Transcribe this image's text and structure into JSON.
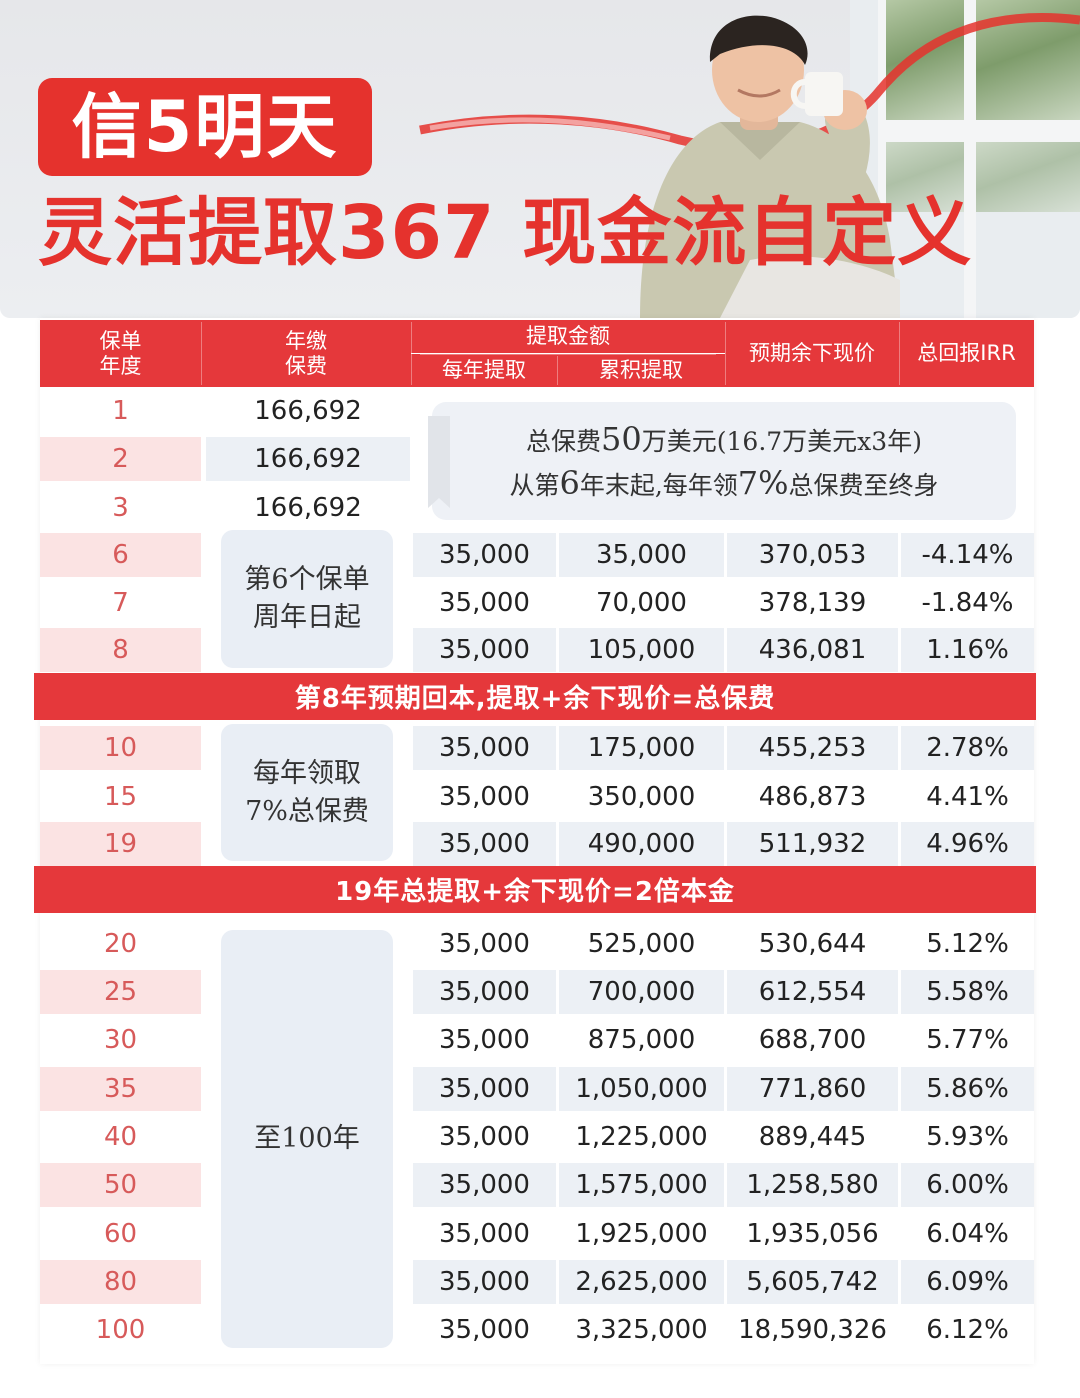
{
  "hero": {
    "badge": "信5明天",
    "headline": "灵活提取367 现金流自定义"
  },
  "table": {
    "headers": {
      "year": "保单\n年度",
      "premium": "年缴\n保费",
      "withdraw_group": "提取金额",
      "annual": "每年提取",
      "cumulative": "累积提取",
      "cash_value": "预期余下现价",
      "irr": "总回报IRR"
    },
    "note": {
      "line1_a": "总保费",
      "line1_b": "50",
      "line1_c": "万美元(16.7万美元x3年)",
      "line2_a": "从第",
      "line2_b": "6",
      "line2_c": "年末起,每年领",
      "line2_d": "7%",
      "line2_e": "总保费至终身"
    },
    "premium_rows": [
      {
        "year": "1",
        "premium": "166,692"
      },
      {
        "year": "2",
        "premium": "166,692"
      },
      {
        "year": "3",
        "premium": "166,692"
      }
    ],
    "section1": {
      "label_1": "第6个保单",
      "label_2": "周年日起",
      "rows": [
        {
          "year": "6",
          "annual": "35,000",
          "cumulative": "35,000",
          "cash_value": "370,053",
          "irr": "-4.14%"
        },
        {
          "year": "7",
          "annual": "35,000",
          "cumulative": "70,000",
          "cash_value": "378,139",
          "irr": "-1.84%"
        },
        {
          "year": "8",
          "annual": "35,000",
          "cumulative": "105,000",
          "cash_value": "436,081",
          "irr": "1.16%"
        }
      ]
    },
    "banner1": "第8年预期回本,提取+余下现价=总保费",
    "section2": {
      "label_1": "每年领取",
      "label_2": "7%总保费",
      "rows": [
        {
          "year": "10",
          "annual": "35,000",
          "cumulative": "175,000",
          "cash_value": "455,253",
          "irr": "2.78%"
        },
        {
          "year": "15",
          "annual": "35,000",
          "cumulative": "350,000",
          "cash_value": "486,873",
          "irr": "4.41%"
        },
        {
          "year": "19",
          "annual": "35,000",
          "cumulative": "490,000",
          "cash_value": "511,932",
          "irr": "4.96%"
        }
      ]
    },
    "banner2": "19年总提取+余下现价=2倍本金",
    "section3": {
      "label_1": "至100年",
      "rows": [
        {
          "year": "20",
          "annual": "35,000",
          "cumulative": "525,000",
          "cash_value": "530,644",
          "irr": "5.12%"
        },
        {
          "year": "25",
          "annual": "35,000",
          "cumulative": "700,000",
          "cash_value": "612,554",
          "irr": "5.58%"
        },
        {
          "year": "30",
          "annual": "35,000",
          "cumulative": "875,000",
          "cash_value": "688,700",
          "irr": "5.77%"
        },
        {
          "year": "35",
          "annual": "35,000",
          "cumulative": "1,050,000",
          "cash_value": "771,860",
          "irr": "5.86%"
        },
        {
          "year": "40",
          "annual": "35,000",
          "cumulative": "1,225,000",
          "cash_value": "889,445",
          "irr": "5.93%"
        },
        {
          "year": "50",
          "annual": "35,000",
          "cumulative": "1,575,000",
          "cash_value": "1,258,580",
          "irr": "6.00%"
        },
        {
          "year": "60",
          "annual": "35,000",
          "cumulative": "1,925,000",
          "cash_value": "1,935,056",
          "irr": "6.04%"
        },
        {
          "year": "80",
          "annual": "35,000",
          "cumulative": "2,625,000",
          "cash_value": "5,605,742",
          "irr": "6.09%"
        },
        {
          "year": "100",
          "annual": "35,000",
          "cumulative": "3,325,000",
          "cash_value": "18,590,326",
          "irr": "6.12%"
        }
      ]
    }
  },
  "colors": {
    "brand_red": "#e5322d",
    "header_red": "#e5383b",
    "row_pink": "#fbe3e3",
    "row_grey": "#ecf0f5",
    "year_text": "#d75a5a"
  }
}
